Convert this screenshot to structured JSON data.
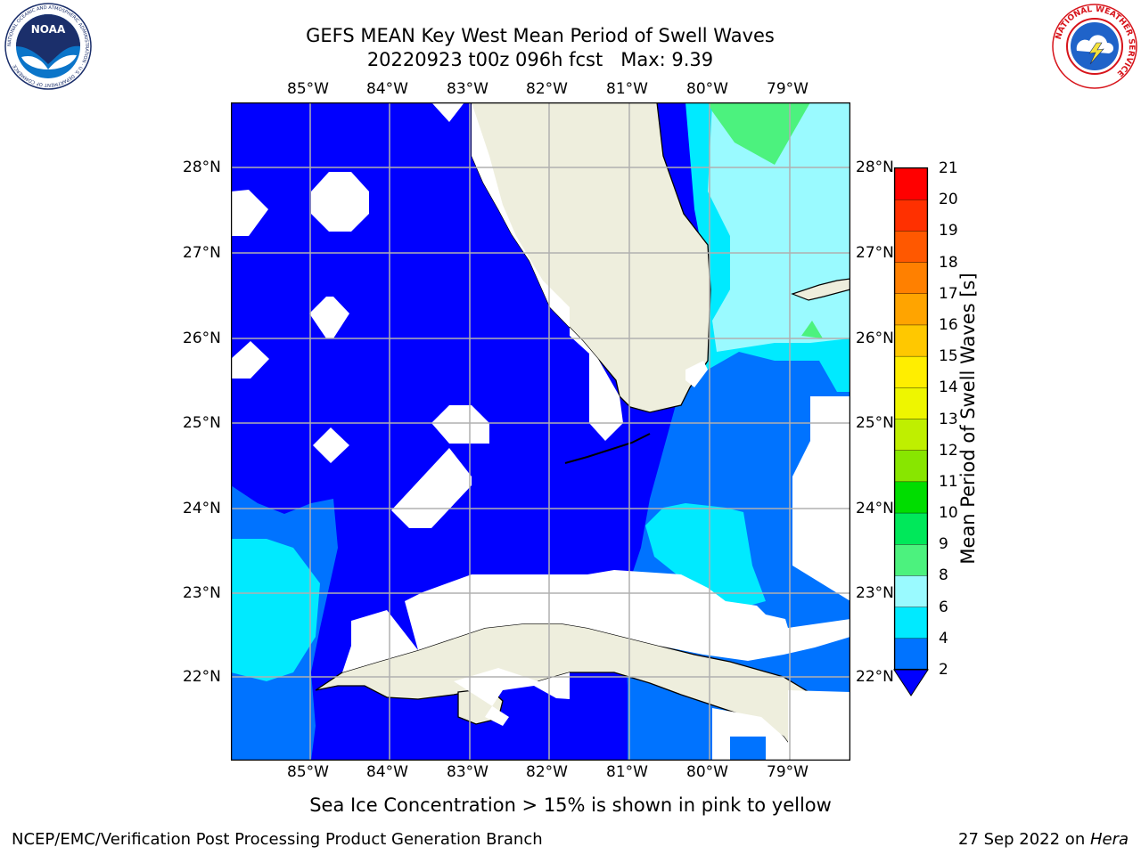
{
  "header": {
    "title_line1": "GEFS MEAN Key West Mean Period of Swell Waves",
    "title_line2": "20220923 t00z 096h fcst   Max: 9.39"
  },
  "logos": {
    "noaa": {
      "icon": "noaa-logo",
      "word": "NOAA",
      "ring_text": "NATIONAL OCEANIC AND ATMOSPHERIC ADMINISTRATION · U.S. DEPARTMENT OF COMMERCE",
      "colors": {
        "navy": "#1b2f6b",
        "blue": "#0b75c9"
      }
    },
    "nws": {
      "icon": "nws-logo",
      "ring_text": "NATIONAL WEATHER SERVICE",
      "colors": {
        "red": "#d7141b",
        "blue": "#1f63c9"
      }
    }
  },
  "map": {
    "lon_labels": [
      "85°W",
      "84°W",
      "83°W",
      "82°W",
      "81°W",
      "80°W",
      "79°W"
    ],
    "lat_labels": [
      "28°N",
      "27°N",
      "26°N",
      "25°N",
      "24°N",
      "23°N",
      "22°N"
    ],
    "colors": {
      "band_2_4": "#0000ff",
      "band_4_6": "#0073ff",
      "band_6_8": "#00eaff",
      "band_8_9": "#9afaff",
      "band_9_10": "#4cf27e",
      "land": "#eeeedd",
      "grid": "#b0b0b0"
    }
  },
  "colorbar": {
    "label": "Mean Period of Swell Waves [s]",
    "ticks": [
      "21",
      "20",
      "19",
      "18",
      "17",
      "16",
      "15",
      "14",
      "13",
      "12",
      "11",
      "10",
      "9",
      "8",
      "6",
      "4",
      "2"
    ],
    "colors": [
      "#ff0000",
      "#ff3000",
      "#ff5800",
      "#ff8000",
      "#ffa400",
      "#ffc800",
      "#ffee00",
      "#eef600",
      "#bfef00",
      "#88e600",
      "#00dd00",
      "#00e85a",
      "#4cf27e",
      "#9afaff",
      "#00eaff",
      "#0073ff"
    ],
    "extend_color": "#0000ff"
  },
  "footer": {
    "note": "Sea Ice Concentration > 15% is shown in pink to yellow",
    "left": "NCEP/EMC/Verification Post Processing Product Generation Branch",
    "right_date": "27 Sep 2022 on ",
    "right_host": "Hera"
  }
}
